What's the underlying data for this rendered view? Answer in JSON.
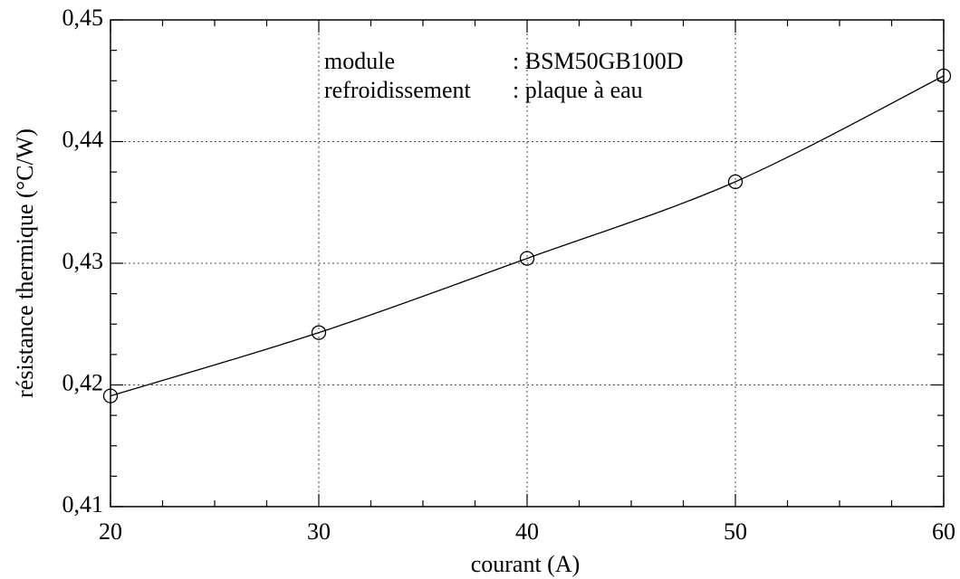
{
  "chart_data": {
    "type": "line",
    "xlabel": "courant (A)",
    "ylabel": "résistance thermique (°C/W)",
    "x": [
      20,
      30,
      40,
      50,
      60
    ],
    "series": [
      {
        "values": [
          0.4191,
          0.4243,
          0.4304,
          0.4367,
          0.4454
        ],
        "color": "#000000"
      }
    ],
    "xlim": [
      20,
      60
    ],
    "xticks": [
      20,
      30,
      40,
      50,
      60
    ],
    "ylim": [
      0.41,
      0.45
    ],
    "yticks": [
      {
        "value": 0.41,
        "label": "0,41"
      },
      {
        "value": 0.42,
        "label": "0,42"
      },
      {
        "value": 0.43,
        "label": "0,43"
      },
      {
        "value": 0.44,
        "label": "0,44"
      },
      {
        "value": 0.45,
        "label": "0,45"
      }
    ],
    "grid": true,
    "annotations": [
      {
        "label": "module",
        "value": ": BSM50GB100D"
      },
      {
        "label": "refroidissement",
        "value": ": plaque à eau"
      }
    ]
  }
}
